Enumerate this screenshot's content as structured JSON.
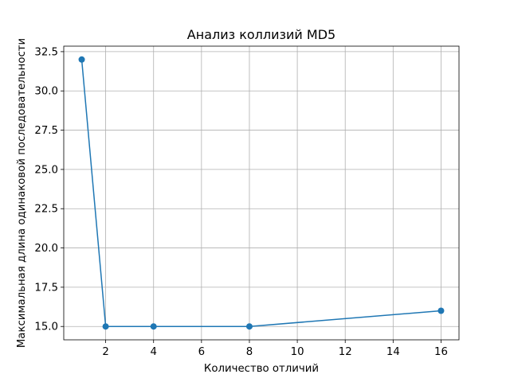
{
  "chart_data": {
    "type": "line",
    "title": "Анализ коллизий MD5",
    "xlabel": "Количество отличий",
    "ylabel": "Максимальная длина одинаковой последовательности",
    "x": [
      1,
      2,
      4,
      8,
      16
    ],
    "series": [
      {
        "values": [
          32,
          15,
          15,
          15,
          16
        ],
        "color": "#1f77b4",
        "marker": "circle"
      }
    ],
    "xlim": [
      0.25,
      16.75
    ],
    "ylim": [
      14.15,
      32.85
    ],
    "xticks": [
      2,
      4,
      6,
      8,
      10,
      12,
      14,
      16
    ],
    "yticks": [
      15.0,
      17.5,
      20.0,
      22.5,
      25.0,
      27.5,
      30.0,
      32.5
    ],
    "xtick_labels": [
      "2",
      "4",
      "6",
      "8",
      "10",
      "12",
      "14",
      "16"
    ],
    "ytick_labels": [
      "15.0",
      "17.5",
      "20.0",
      "22.5",
      "25.0",
      "27.5",
      "30.0",
      "32.5"
    ],
    "grid": true,
    "legend": false
  }
}
